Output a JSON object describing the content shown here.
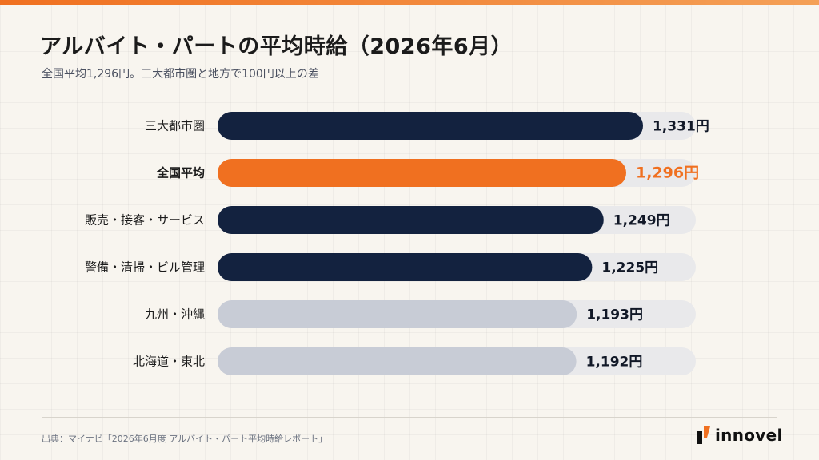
{
  "header": {
    "title": "アルバイト・パートの平均時給（2026年6月）",
    "subtitle": "全国平均1,296円。三大都市圏と地方で100円以上の差"
  },
  "footer": {
    "source": "出典：マイナビ「2026年6月度 アルバイト・パート平均時給レポート」",
    "brand": "innovel"
  },
  "colors": {
    "accent": "#f07020",
    "navy": "#13223f",
    "gray": "#c8ccd6",
    "track": "#e9e9eb"
  },
  "chart_data": {
    "type": "bar",
    "orientation": "horizontal",
    "categories": [
      "三大都市圏",
      "全国平均",
      "販売・接客・サービス",
      "警備・清掃・ビル管理",
      "九州・沖縄",
      "北海道・東北"
    ],
    "values": [
      1331,
      1296,
      1249,
      1225,
      1193,
      1192
    ],
    "value_labels": [
      "1,331円",
      "1,296円",
      "1,249円",
      "1,225円",
      "1,193円",
      "1,192円"
    ],
    "bar_styles": [
      "navy",
      "accent",
      "navy",
      "navy",
      "gray",
      "gray"
    ],
    "title": "アルバイト・パートの平均時給（2026年6月）",
    "subtitle": "全国平均1,296円。三大都市圏と地方で100円以上の差",
    "unit": "円",
    "grid": false,
    "legend": "none"
  }
}
